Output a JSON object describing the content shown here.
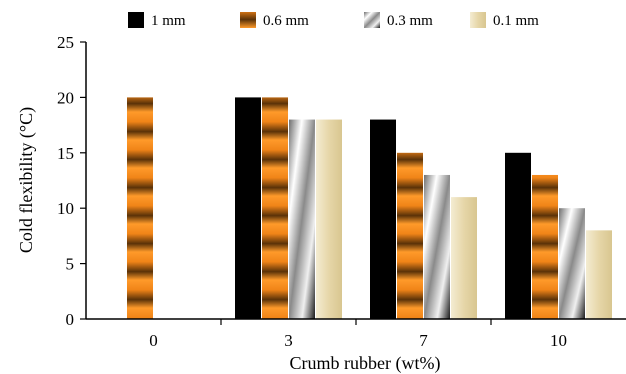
{
  "chart_data": {
    "type": "bar",
    "categories": [
      "0",
      "3",
      "7",
      "10"
    ],
    "series": [
      {
        "name": "1 mm",
        "values": [
          null,
          20,
          18,
          15
        ],
        "color": "#000000",
        "pattern": "solid-black"
      },
      {
        "name": "0.6 mm",
        "values": [
          20,
          20,
          15,
          13
        ],
        "color": "#f58a1f",
        "pattern": "orange-brown-stripes"
      },
      {
        "name": "0.3 mm",
        "values": [
          null,
          18,
          13,
          10
        ],
        "color": "#9a9a9a",
        "pattern": "grey-swirl"
      },
      {
        "name": "0.1 mm",
        "values": [
          null,
          18,
          11,
          8
        ],
        "color": "#e9dcb2",
        "pattern": "cream-gradient"
      }
    ],
    "xlabel": "Crumb rubber (wt%)",
    "ylabel": "Cold flexibility (°C)",
    "ylim": [
      0,
      25
    ],
    "yticks": [
      "0",
      "5",
      "10",
      "15",
      "20",
      "25"
    ],
    "grid": false,
    "legend_position": "top"
  }
}
